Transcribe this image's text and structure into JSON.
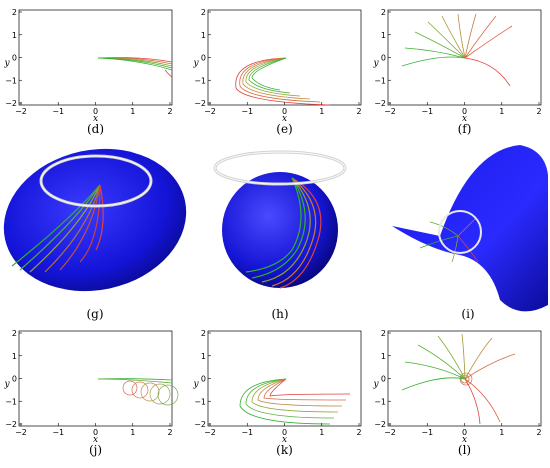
{
  "figure": {
    "plots": [
      {
        "id": "d",
        "label": "(d)",
        "xticks": [
          "−2",
          "−1",
          "0",
          "1",
          "2"
        ],
        "yticks": [
          "2",
          "1",
          "0",
          "−1",
          "−2"
        ],
        "xlabel": "x",
        "ylabel": "y"
      },
      {
        "id": "e",
        "label": "(e)",
        "xticks": [
          "−2",
          "−1",
          "0",
          "1",
          "2"
        ],
        "yticks": [
          "2",
          "1",
          "0",
          "−1",
          "−2"
        ],
        "xlabel": "x",
        "ylabel": "y"
      },
      {
        "id": "f",
        "label": "(f)",
        "xticks": [
          "−2",
          "−1",
          "0",
          "1",
          "2"
        ],
        "yticks": [
          "2",
          "1",
          "0",
          "−1",
          "−2"
        ],
        "xlabel": "x",
        "ylabel": "y"
      },
      {
        "id": "j",
        "label": "(j)",
        "xticks": [
          "−2",
          "−1",
          "0",
          "1",
          "2"
        ],
        "yticks": [
          "2",
          "1",
          "0",
          "−1",
          "−2"
        ],
        "xlabel": "x",
        "ylabel": "y"
      },
      {
        "id": "k",
        "label": "(k)",
        "xticks": [
          "−2",
          "−1",
          "0",
          "1",
          "2"
        ],
        "yticks": [
          "2",
          "1",
          "0",
          "−1",
          "−2"
        ],
        "xlabel": "x",
        "ylabel": "y"
      },
      {
        "id": "l",
        "label": "(l)",
        "xticks": [
          "−2",
          "−1",
          "0",
          "1",
          "2"
        ],
        "yticks": [
          "2",
          "1",
          "0",
          "−1",
          "−2"
        ],
        "xlabel": "x",
        "ylabel": "y"
      }
    ],
    "renders": [
      {
        "id": "g",
        "label": "(g)",
        "surface": "ellipsoid"
      },
      {
        "id": "h",
        "label": "(h)",
        "surface": "sphere"
      },
      {
        "id": "i",
        "label": "(i)",
        "surface": "saddle"
      }
    ],
    "colors": {
      "surface": "#1010e0",
      "ring": "#e8e8e8",
      "red": "#e04040",
      "green": "#30b030"
    }
  }
}
